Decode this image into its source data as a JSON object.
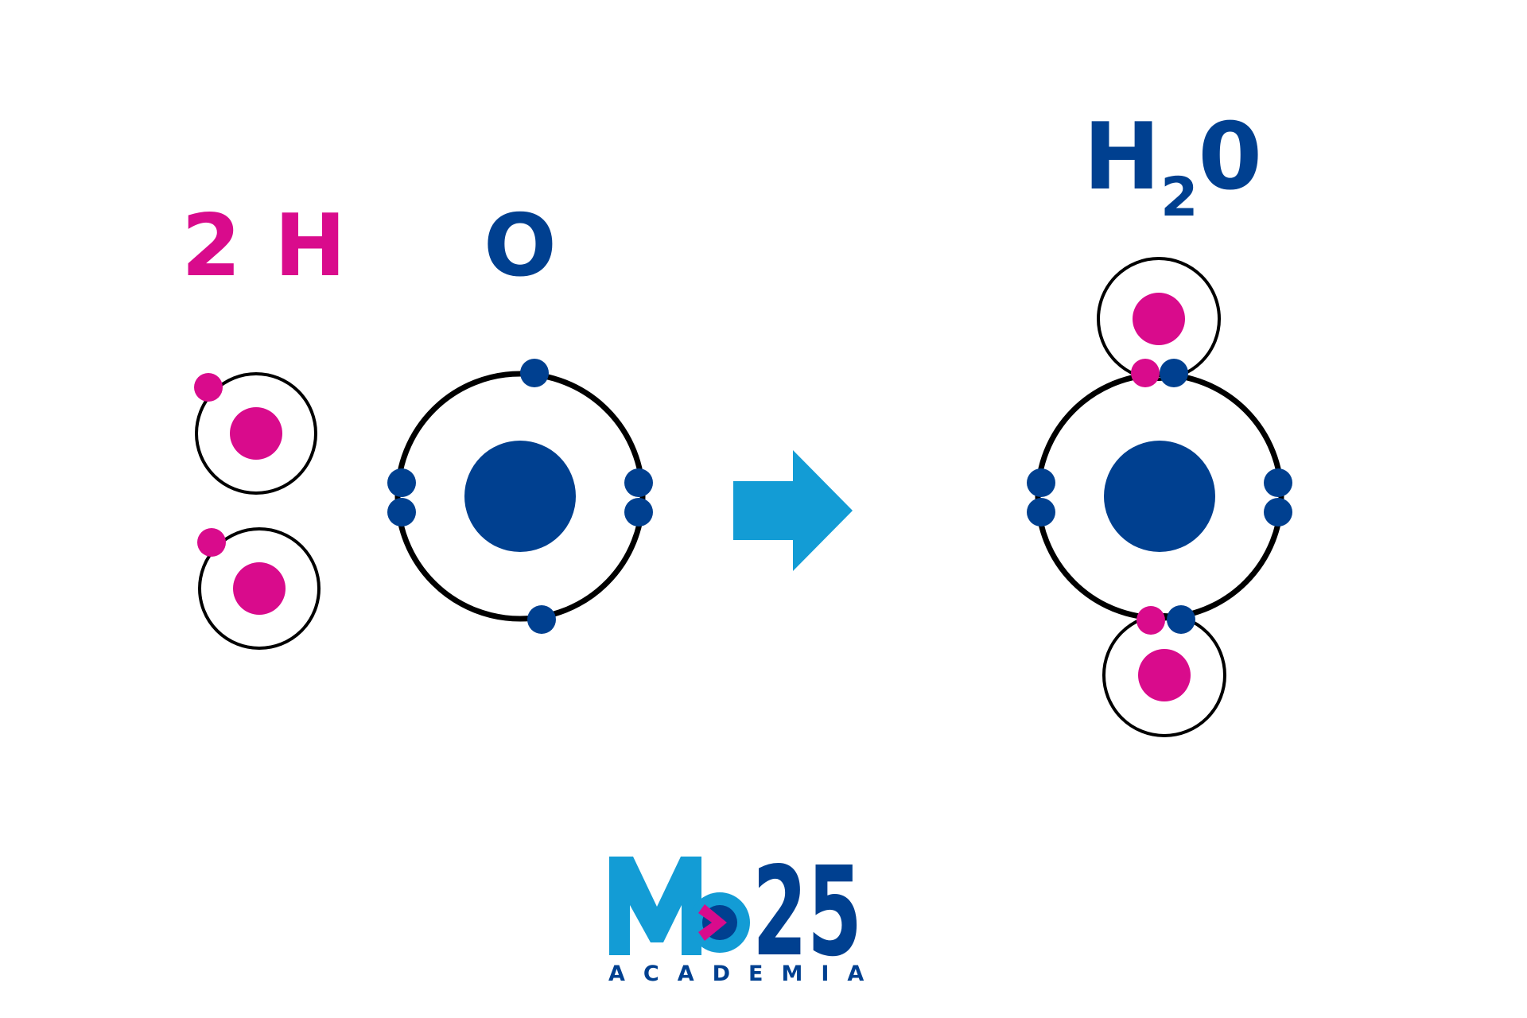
{
  "labels": {
    "reactant_h_count": "2",
    "reactant_h": "H",
    "reactant_o": "O",
    "product_h": "H",
    "product_sub": "2",
    "product_o": "0"
  },
  "logo": {
    "letter": "M",
    "number": "25",
    "subtitle": "ACADEMIA"
  },
  "colors": {
    "hydrogen": "#d90b8c",
    "oxygen": "#004090",
    "arrow": "#139cd5",
    "orbit": "#000000",
    "logo_light": "#139cd5"
  }
}
